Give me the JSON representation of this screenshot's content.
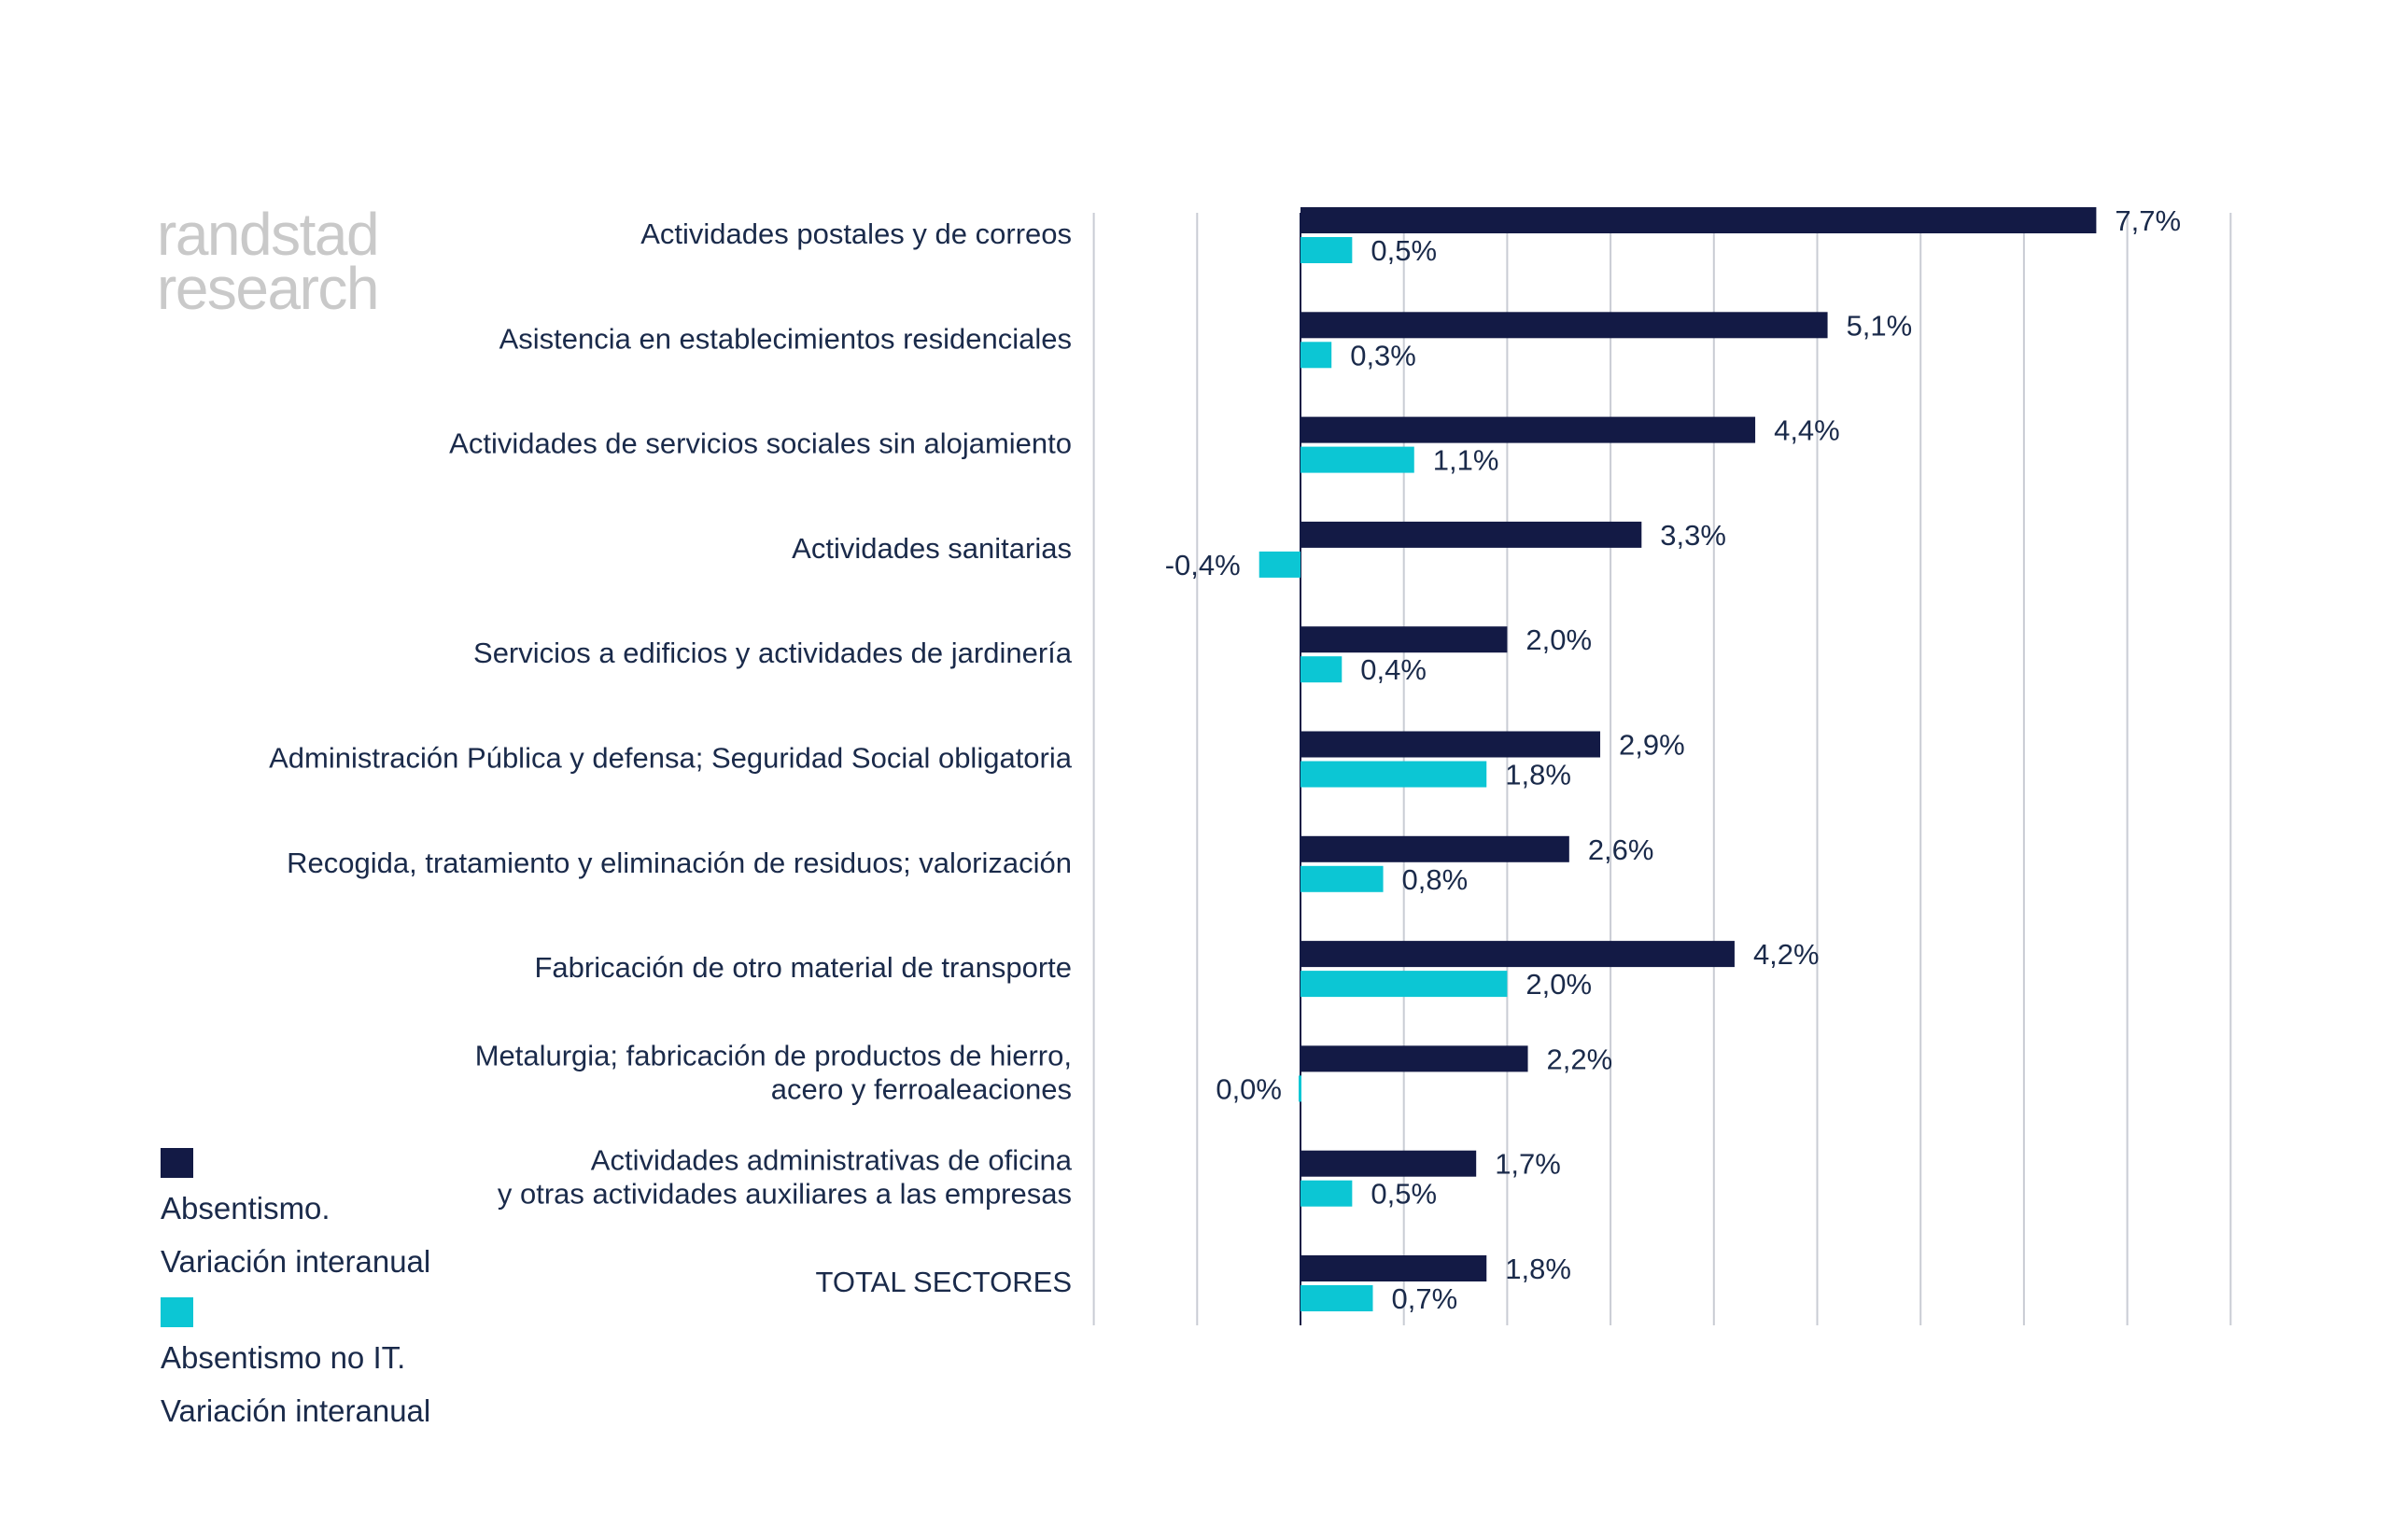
{
  "brand": {
    "line1": "randstad",
    "line2": "research"
  },
  "colors": {
    "absentismo": "#131a45",
    "no_it": "#0cc6d4",
    "grid": "#c9ccd4",
    "text": "#1a2a4a",
    "logo": "#c9c9c9"
  },
  "legend": [
    {
      "key": "absentismo",
      "line1": "Absentismo.",
      "line2": "Variación interanual",
      "color": "#131a45"
    },
    {
      "key": "no_it",
      "line1": "Absentismo no IT.",
      "line2": "Variación interanual",
      "color": "#0cc6d4"
    }
  ],
  "chart_data": {
    "type": "bar",
    "orientation": "horizontal",
    "categories": [
      [
        "Actividades postales y de correos"
      ],
      [
        "Asistencia en establecimientos residenciales"
      ],
      [
        "Actividades de servicios sociales sin alojamiento"
      ],
      [
        "Actividades sanitarias"
      ],
      [
        "Servicios a edificios y actividades de jardinería"
      ],
      [
        "Administración Pública y defensa; Seguridad Social obligatoria"
      ],
      [
        "Recogida, tratamiento y eliminación de residuos; valorización"
      ],
      [
        "Fabricación de otro material de transporte"
      ],
      [
        "Metalurgia; fabricación de productos de hierro,",
        "acero y ferroaleaciones"
      ],
      [
        "Actividades administrativas de oficina",
        "y otras actividades auxiliares a las empresas"
      ],
      [
        "TOTAL SECTORES"
      ]
    ],
    "series": [
      {
        "name": "Absentismo. Variación interanual",
        "color": "#131a45",
        "values": [
          7.7,
          5.1,
          4.4,
          3.3,
          2.0,
          2.9,
          2.6,
          4.2,
          2.2,
          1.7,
          1.8
        ],
        "labels": [
          "7,7%",
          "5,1%",
          "4,4%",
          "3,3%",
          "2,0%",
          "2,9%",
          "2,6%",
          "4,2%",
          "2,2%",
          "1,7%",
          "1,8%"
        ]
      },
      {
        "name": "Absentismo no IT. Variación interanual",
        "color": "#0cc6d4",
        "values": [
          0.5,
          0.3,
          1.1,
          -0.4,
          0.4,
          1.8,
          0.8,
          2.0,
          0.0,
          0.5,
          0.7
        ],
        "labels": [
          "0,5%",
          "0,3%",
          "1,1%",
          "-0,4%",
          "0,4%",
          "1,8%",
          "0,8%",
          "2,0%",
          "0,0%",
          "0,5%",
          "0,7%"
        ]
      }
    ],
    "xlim": [
      -2,
      9
    ],
    "grid": true,
    "grid_step": 1,
    "legend_position": "bottom-left"
  }
}
